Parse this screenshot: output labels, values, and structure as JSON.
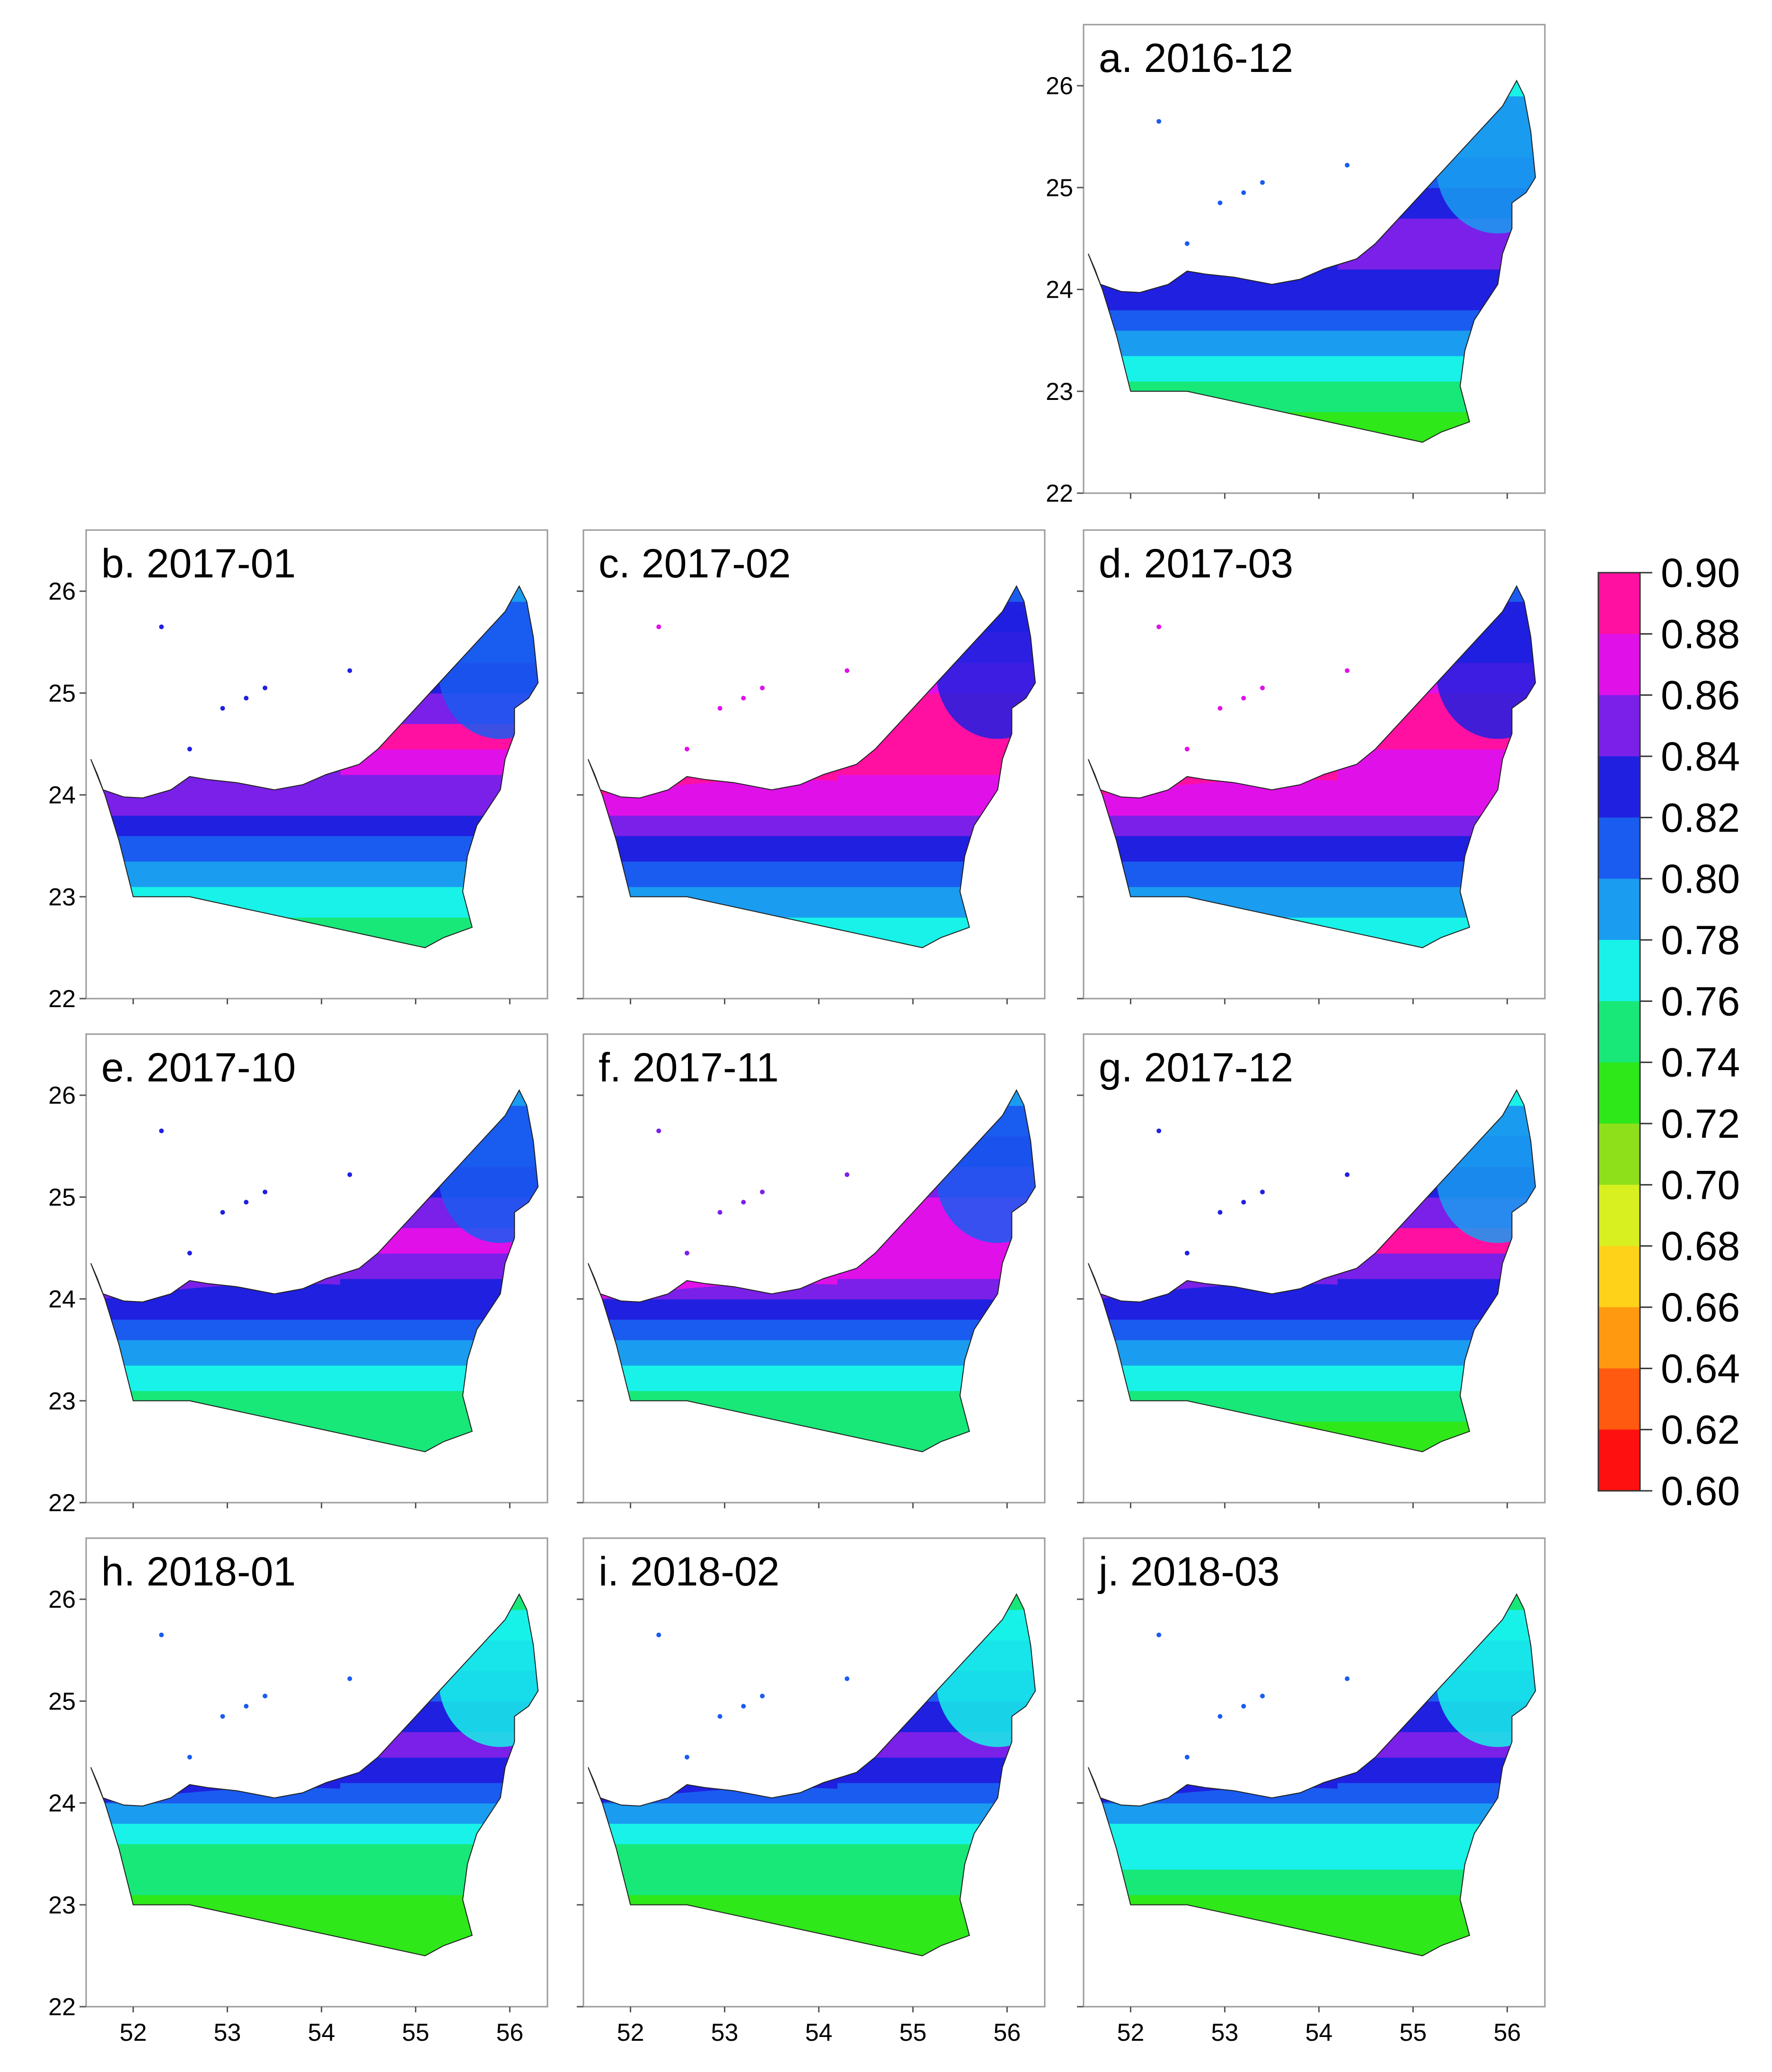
{
  "figure": {
    "lon_ticks": [
      52,
      53,
      54,
      55,
      56
    ],
    "lat_ticks": [
      22,
      23,
      24,
      25,
      26
    ],
    "lon_range": [
      51.5,
      56.4
    ],
    "lat_range": [
      22,
      26.6
    ]
  },
  "panels": [
    {
      "id": "a",
      "title": "a. 2016-12",
      "scheme": [
        0.76,
        0.78,
        0.78,
        0.8,
        0.82,
        0.84,
        0.84,
        0.82,
        0.82,
        0.8,
        0.78,
        0.76,
        0.74,
        0.72
      ]
    },
    {
      "id": "b",
      "title": "b. 2017-01",
      "scheme": [
        0.78,
        0.8,
        0.8,
        0.82,
        0.84,
        0.88,
        0.86,
        0.84,
        0.84,
        0.82,
        0.8,
        0.78,
        0.76,
        0.74
      ]
    },
    {
      "id": "c",
      "title": "c. 2017-02",
      "scheme": [
        0.8,
        0.82,
        0.84,
        0.86,
        0.88,
        0.88,
        0.88,
        0.86,
        0.86,
        0.84,
        0.82,
        0.8,
        0.78,
        0.76
      ]
    },
    {
      "id": "d",
      "title": "d. 2017-03",
      "scheme": [
        0.8,
        0.82,
        0.82,
        0.86,
        0.88,
        0.88,
        0.86,
        0.86,
        0.86,
        0.84,
        0.82,
        0.8,
        0.78,
        0.76
      ]
    },
    {
      "id": "e",
      "title": "e. 2017-10",
      "scheme": [
        0.78,
        0.8,
        0.8,
        0.82,
        0.84,
        0.86,
        0.84,
        0.82,
        0.82,
        0.8,
        0.78,
        0.76,
        0.74,
        0.74
      ]
    },
    {
      "id": "f",
      "title": "f. 2017-11",
      "scheme": [
        0.78,
        0.8,
        0.82,
        0.84,
        0.86,
        0.86,
        0.86,
        0.84,
        0.82,
        0.8,
        0.78,
        0.76,
        0.74,
        0.74
      ]
    },
    {
      "id": "g",
      "title": "g. 2017-12",
      "scheme": [
        0.76,
        0.78,
        0.8,
        0.82,
        0.84,
        0.88,
        0.84,
        0.82,
        0.82,
        0.8,
        0.78,
        0.76,
        0.74,
        0.72
      ]
    },
    {
      "id": "h",
      "title": "h. 2018-01",
      "scheme": [
        0.74,
        0.76,
        0.78,
        0.8,
        0.82,
        0.84,
        0.82,
        0.8,
        0.78,
        0.76,
        0.74,
        0.74,
        0.72,
        0.72
      ]
    },
    {
      "id": "i",
      "title": "i. 2018-02",
      "scheme": [
        0.74,
        0.76,
        0.78,
        0.8,
        0.82,
        0.84,
        0.82,
        0.8,
        0.78,
        0.76,
        0.74,
        0.74,
        0.72,
        0.72
      ]
    },
    {
      "id": "j",
      "title": "j. 2018-03",
      "scheme": [
        0.74,
        0.76,
        0.78,
        0.8,
        0.82,
        0.84,
        0.82,
        0.8,
        0.78,
        0.76,
        0.76,
        0.74,
        0.72,
        0.72
      ]
    }
  ],
  "colorbar": {
    "labels": [
      "0.90",
      "0.88",
      "0.86",
      "0.84",
      "0.82",
      "0.80",
      "0.78",
      "0.76",
      "0.74",
      "0.72",
      "0.70",
      "0.68",
      "0.66",
      "0.64",
      "0.62",
      "0.60"
    ],
    "colors": [
      {
        "v": 0.6,
        "c": "#ff1010"
      },
      {
        "v": 0.62,
        "c": "#ff5a10"
      },
      {
        "v": 0.64,
        "c": "#ff9a10"
      },
      {
        "v": 0.66,
        "c": "#ffd21a"
      },
      {
        "v": 0.68,
        "c": "#d8f020"
      },
      {
        "v": 0.7,
        "c": "#8ee01a"
      },
      {
        "v": 0.72,
        "c": "#2ee81a"
      },
      {
        "v": 0.74,
        "c": "#18e878"
      },
      {
        "v": 0.76,
        "c": "#18f2e8"
      },
      {
        "v": 0.78,
        "c": "#1a9cf0"
      },
      {
        "v": 0.8,
        "c": "#1a5cf0"
      },
      {
        "v": 0.82,
        "c": "#2020e0"
      },
      {
        "v": 0.84,
        "c": "#7a20e8"
      },
      {
        "v": 0.86,
        "c": "#e010e8"
      },
      {
        "v": 0.88,
        "c": "#ff10a0"
      }
    ]
  }
}
